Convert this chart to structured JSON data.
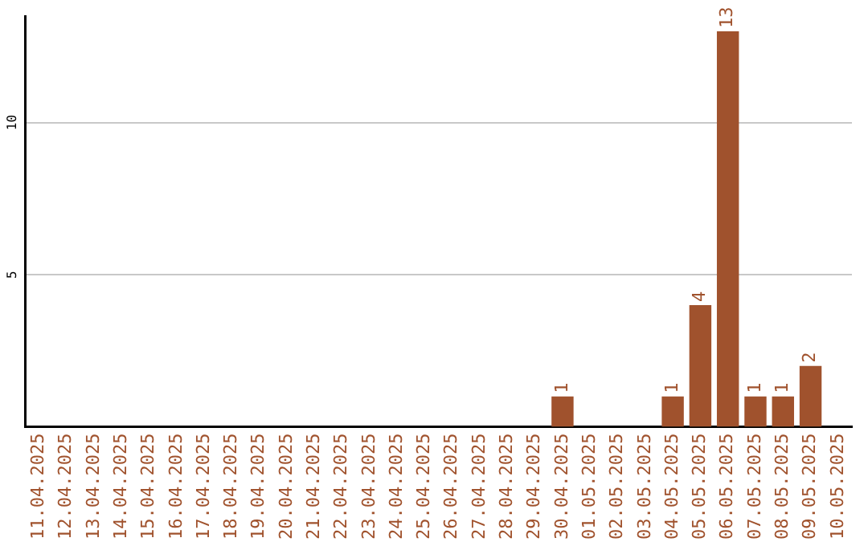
{
  "chart_data": {
    "type": "bar",
    "categories": [
      "11.04.2025",
      "12.04.2025",
      "13.04.2025",
      "14.04.2025",
      "15.04.2025",
      "16.04.2025",
      "17.04.2025",
      "18.04.2025",
      "19.04.2025",
      "20.04.2025",
      "21.04.2025",
      "22.04.2025",
      "23.04.2025",
      "24.04.2025",
      "25.04.2025",
      "26.04.2025",
      "27.04.2025",
      "28.04.2025",
      "29.04.2025",
      "30.04.2025",
      "01.05.2025",
      "02.05.2025",
      "03.05.2025",
      "04.05.2025",
      "05.05.2025",
      "06.05.2025",
      "07.05.2025",
      "08.05.2025",
      "09.05.2025",
      "10.05.2025"
    ],
    "values": [
      0,
      0,
      0,
      0,
      0,
      0,
      0,
      0,
      0,
      0,
      0,
      0,
      0,
      0,
      0,
      0,
      0,
      0,
      0,
      1,
      0,
      0,
      0,
      1,
      4,
      13,
      1,
      1,
      2,
      0
    ],
    "value_labels": [
      null,
      null,
      null,
      null,
      null,
      null,
      null,
      null,
      null,
      null,
      null,
      null,
      null,
      null,
      null,
      null,
      null,
      null,
      null,
      "1",
      null,
      null,
      null,
      "1",
      "4",
      "13",
      "1",
      "1",
      "2",
      null
    ],
    "color": "#a0522d",
    "ylim": [
      0,
      13.5
    ],
    "yticks": [
      5,
      10
    ],
    "grid": "y",
    "legend": false
  }
}
